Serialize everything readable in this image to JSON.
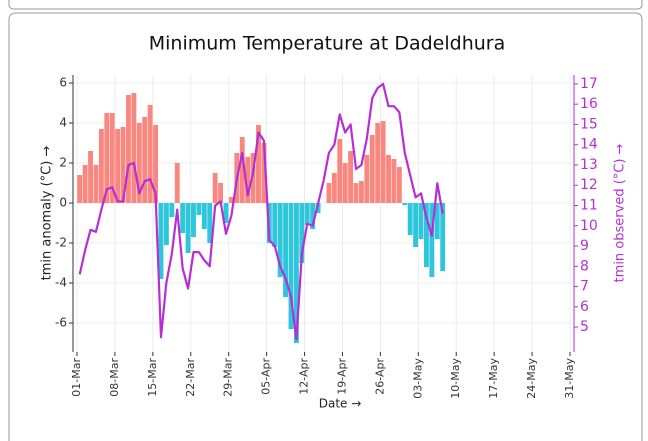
{
  "chart_data": {
    "type": "bar_line",
    "title": "Minimum Temperature at Dadeldhura",
    "xlabel": "Date →",
    "ylabel": "tmin anomaly (°C) →",
    "y2label": "tmin observed (°C) →",
    "x": [
      "01-Mar",
      "02-Mar",
      "03-Mar",
      "04-Mar",
      "05-Mar",
      "06-Mar",
      "07-Mar",
      "08-Mar",
      "09-Mar",
      "10-Mar",
      "11-Mar",
      "12-Mar",
      "13-Mar",
      "14-Mar",
      "15-Mar",
      "16-Mar",
      "17-Mar",
      "18-Mar",
      "19-Mar",
      "20-Mar",
      "21-Mar",
      "22-Mar",
      "23-Mar",
      "24-Mar",
      "25-Mar",
      "26-Mar",
      "27-Mar",
      "28-Mar",
      "29-Mar",
      "30-Mar",
      "31-Mar",
      "01-Apr",
      "02-Apr",
      "03-Apr",
      "04-Apr",
      "05-Apr",
      "06-Apr",
      "07-Apr",
      "08-Apr",
      "09-Apr",
      "10-Apr",
      "11-Apr",
      "12-Apr",
      "13-Apr",
      "14-Apr",
      "15-Apr",
      "16-Apr",
      "17-Apr",
      "18-Apr",
      "19-Apr",
      "20-Apr",
      "21-Apr",
      "22-Apr",
      "23-Apr",
      "24-Apr",
      "25-Apr",
      "26-Apr",
      "27-Apr",
      "28-Apr",
      "29-Apr",
      "30-Apr",
      "01-May",
      "02-May",
      "03-May",
      "04-May",
      "05-May",
      "06-May",
      "07-May"
    ],
    "series": [
      {
        "type": "bar",
        "positive_color": "#f8877f",
        "negative_color": "#2ec6da",
        "values": [
          1.4,
          1.9,
          2.6,
          1.9,
          3.7,
          4.5,
          4.5,
          3.7,
          3.8,
          5.4,
          5.5,
          4.0,
          4.3,
          4.9,
          3.9,
          -3.8,
          -2.1,
          -0.7,
          2.0,
          -1.5,
          -2.5,
          -1.7,
          -0.6,
          -1.3,
          -2.0,
          1.5,
          1.0,
          -1.0,
          0.3,
          2.5,
          3.3,
          2.3,
          2.5,
          3.9,
          3.0,
          -2.0,
          -2.2,
          -3.7,
          -4.7,
          -6.3,
          -7.0,
          -3.0,
          -1.1,
          -1.3,
          -0.5,
          0.0,
          1.0,
          1.5,
          3.2,
          2.0,
          2.6,
          1.0,
          1.1,
          2.4,
          3.4,
          4.0,
          4.1,
          2.4,
          2.2,
          1.8,
          -0.1,
          -1.6,
          -2.2,
          -1.8,
          -3.2,
          -3.7,
          -1.8,
          -3.4
        ]
      },
      {
        "type": "line",
        "axis": "y2",
        "color": "#b62fd6",
        "values": [
          7.6,
          8.8,
          9.8,
          9.7,
          10.8,
          11.8,
          11.9,
          11.2,
          11.2,
          13.0,
          13.1,
          11.6,
          12.2,
          12.3,
          11.6,
          4.5,
          7.2,
          8.6,
          10.8,
          7.9,
          6.9,
          8.7,
          8.7,
          8.3,
          8.0,
          11.0,
          11.2,
          9.6,
          10.5,
          12.3,
          13.6,
          11.5,
          12.6,
          14.6,
          14.2,
          9.3,
          9.0,
          8.0,
          7.4,
          6.5,
          4.4,
          8.6,
          10.1,
          10.0,
          11.1,
          12.2,
          13.6,
          14.0,
          15.5,
          14.6,
          15.0,
          12.8,
          13.0,
          14.3,
          16.3,
          16.8,
          17.0,
          15.9,
          15.9,
          15.6,
          13.6,
          12.5,
          11.4,
          11.6,
          10.4,
          9.5,
          12.1,
          10.6
        ]
      }
    ],
    "xlim": [
      "01-Mar",
      "31-May"
    ],
    "xticks": [
      "01-Mar",
      "08-Mar",
      "15-Mar",
      "22-Mar",
      "29-Mar",
      "05-Apr",
      "12-Apr",
      "19-Apr",
      "26-Apr",
      "03-May",
      "10-May",
      "17-May",
      "24-May",
      "31-May"
    ],
    "ylim": [
      -7.45,
      6.4
    ],
    "yticks": [
      -6,
      -4,
      -2,
      0,
      2,
      4,
      6
    ],
    "y2lim": [
      3.77,
      17.44
    ],
    "y2ticks": [
      5,
      6,
      7,
      8,
      9,
      10,
      11,
      12,
      13,
      14,
      15,
      16,
      17
    ],
    "y2_color": "#b62fd6",
    "grid": true
  }
}
